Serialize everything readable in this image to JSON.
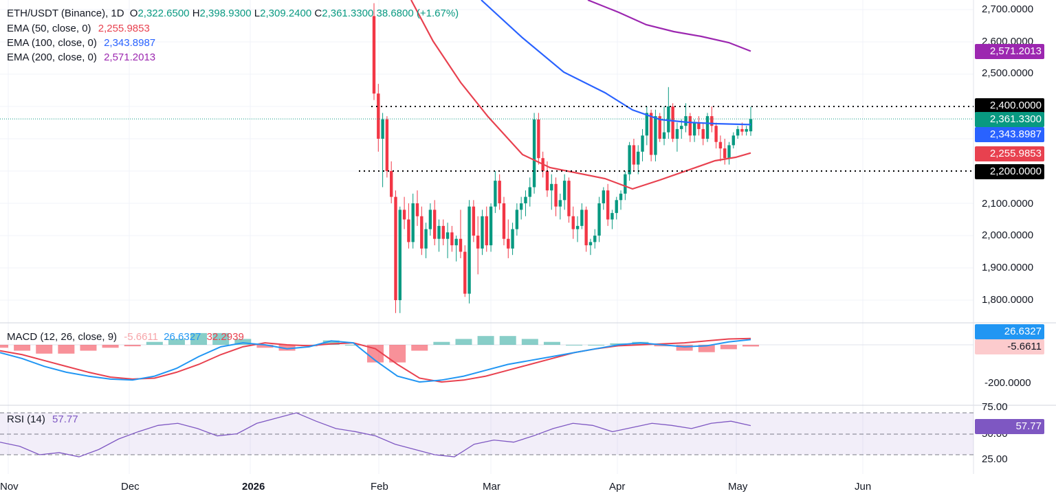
{
  "header": {
    "symbol": "ETH/USDT (Binance), 1D",
    "o_label": "O",
    "o_value": "2,322.6500",
    "h_label": "H",
    "h_value": "2,398.9300",
    "l_label": "L",
    "l_value": "2,309.2400",
    "c_label": "C",
    "c_value": "2,361.3300",
    "change": "38.6800 (+1.67%)"
  },
  "ema_legend": [
    {
      "label": "EMA (50, close, 0)",
      "value": "2,255.9853",
      "color": "#e8414f"
    },
    {
      "label": "EMA (100, close, 0)",
      "value": "2,343.8987",
      "color": "#2962ff"
    },
    {
      "label": "EMA (200, close, 0)",
      "value": "2,571.2013",
      "color": "#9c27b0"
    }
  ],
  "macd_legend": {
    "label": "MACD (12, 26, close, 9)",
    "hist": "-5.6611",
    "macd": "26.6327",
    "signal": "32.2939"
  },
  "rsi_legend": {
    "label": "RSI (14)",
    "value": "57.77"
  },
  "price_axis": [
    "2,700.0000",
    "2,600.0000",
    "2,500.0000",
    "2,100.0000",
    "2,000.0000",
    "1,900.0000",
    "1,800.0000"
  ],
  "price_tags": [
    {
      "text": "2,571.2013",
      "color": "#9c27b0"
    },
    {
      "text": "2,400.0000",
      "color": "#000000"
    },
    {
      "text": "2,361.3300",
      "color": "#089981"
    },
    {
      "text": "2,343.8987",
      "color": "#2962ff"
    },
    {
      "text": "2,255.9853",
      "color": "#e8414f"
    },
    {
      "text": "2,200.0000",
      "color": "#000000"
    }
  ],
  "macd_axis": [
    "-200.0000"
  ],
  "macd_tags": [
    {
      "text": "26.6327",
      "color": "#2196f3"
    },
    {
      "text": "-5.6611",
      "color": "#fccbcd"
    }
  ],
  "rsi_axis": [
    "75.00",
    "50.00",
    "25.00"
  ],
  "rsi_tag": {
    "text": "57.77",
    "color": "#7e57c2"
  },
  "time_axis": [
    "Nov",
    "Dec",
    "2026",
    "Feb",
    "Mar",
    "Apr",
    "May",
    "Jun"
  ],
  "chart_data": [
    {
      "type": "candlestick",
      "title": "ETH/USDT (Binance), 1D",
      "x": [
        "2026-01-31",
        "2026-02-01",
        "2026-02-02",
        "2026-02-03",
        "2026-02-04",
        "2026-02-05",
        "2026-02-06",
        "2026-02-07",
        "2026-02-08",
        "2026-02-09",
        "2026-02-10",
        "2026-02-11",
        "2026-02-12",
        "2026-02-13",
        "2026-02-14",
        "2026-02-15",
        "2026-02-16",
        "2026-02-17",
        "2026-02-18",
        "2026-02-19",
        "2026-02-20",
        "2026-02-21",
        "2026-02-22",
        "2026-02-23",
        "2026-02-24",
        "2026-02-25",
        "2026-02-26",
        "2026-02-27",
        "2026-02-28",
        "2026-03-01",
        "2026-03-02",
        "2026-03-03",
        "2026-03-04",
        "2026-03-05",
        "2026-03-06",
        "2026-03-07",
        "2026-03-08",
        "2026-03-09",
        "2026-03-10",
        "2026-03-11",
        "2026-03-12",
        "2026-03-13",
        "2026-03-14",
        "2026-03-15",
        "2026-03-16",
        "2026-03-17",
        "2026-03-18",
        "2026-03-19",
        "2026-03-20",
        "2026-03-21",
        "2026-03-22",
        "2026-03-23",
        "2026-03-24",
        "2026-03-25",
        "2026-03-26",
        "2026-03-27",
        "2026-03-28",
        "2026-03-29",
        "2026-03-30",
        "2026-03-31",
        "2026-04-01",
        "2026-04-02",
        "2026-04-03",
        "2026-04-04",
        "2026-04-05",
        "2026-04-06",
        "2026-04-07",
        "2026-04-08",
        "2026-04-09",
        "2026-04-10",
        "2026-04-11",
        "2026-04-12",
        "2026-04-13",
        "2026-04-14",
        "2026-04-15",
        "2026-04-16",
        "2026-04-17",
        "2026-04-18",
        "2026-04-19",
        "2026-04-20",
        "2026-04-21",
        "2026-04-22",
        "2026-04-23",
        "2026-04-24",
        "2026-04-25",
        "2026-04-26",
        "2026-04-27",
        "2026-04-28",
        "2026-04-29",
        "2026-04-30",
        "2026-05-01",
        "2026-05-02",
        "2026-05-03",
        "2026-05-04"
      ],
      "ohlc": [
        [
          2680,
          2720,
          2420,
          2440
        ],
        [
          2440,
          2470,
          2260,
          2300
        ],
        [
          2300,
          2380,
          2150,
          2360
        ],
        [
          2360,
          2370,
          2180,
          2200
        ],
        [
          2200,
          2230,
          2100,
          2120
        ],
        [
          2120,
          2140,
          1760,
          1800
        ],
        [
          1800,
          2090,
          1760,
          2080
        ],
        [
          2080,
          2120,
          2020,
          2050
        ],
        [
          2050,
          2100,
          1960,
          1980
        ],
        [
          1980,
          2130,
          1960,
          2100
        ],
        [
          2100,
          2140,
          2030,
          2060
        ],
        [
          2060,
          2090,
          1940,
          1960
        ],
        [
          1960,
          2040,
          1930,
          2020
        ],
        [
          2020,
          2100,
          2000,
          2080
        ],
        [
          2080,
          2110,
          1970,
          1990
        ],
        [
          1990,
          2050,
          1950,
          2030
        ],
        [
          2030,
          2050,
          1970,
          1990
        ],
        [
          1990,
          2040,
          1930,
          2010
        ],
        [
          2010,
          2030,
          1950,
          1970
        ],
        [
          1970,
          2000,
          1920,
          1990
        ],
        [
          1990,
          2080,
          1930,
          1950
        ],
        [
          1950,
          1970,
          1810,
          1820
        ],
        [
          1820,
          2110,
          1790,
          2090
        ],
        [
          2090,
          2110,
          1980,
          2000
        ],
        [
          2000,
          2060,
          1880,
          1960
        ],
        [
          1960,
          2080,
          1940,
          2060
        ],
        [
          2060,
          2090,
          1950,
          1970
        ],
        [
          1970,
          2100,
          1950,
          2090
        ],
        [
          2090,
          2200,
          2070,
          2170
        ],
        [
          2170,
          2190,
          2080,
          2100
        ],
        [
          2100,
          2120,
          1970,
          1990
        ],
        [
          1990,
          2050,
          1930,
          1960
        ],
        [
          1960,
          2040,
          1940,
          2020
        ],
        [
          2020,
          2100,
          2000,
          2080
        ],
        [
          2080,
          2120,
          2050,
          2100
        ],
        [
          2100,
          2140,
          2060,
          2120
        ],
        [
          2120,
          2180,
          2090,
          2150
        ],
        [
          2150,
          2380,
          2130,
          2360
        ],
        [
          2360,
          2380,
          2220,
          2240
        ],
        [
          2240,
          2260,
          2180,
          2200
        ],
        [
          2200,
          2230,
          2120,
          2140
        ],
        [
          2140,
          2190,
          2080,
          2160
        ],
        [
          2160,
          2180,
          2060,
          2090
        ],
        [
          2090,
          2130,
          2050,
          2110
        ],
        [
          2110,
          2190,
          2080,
          2170
        ],
        [
          2170,
          2180,
          2040,
          2060
        ],
        [
          2060,
          2090,
          1990,
          2020
        ],
        [
          2020,
          2060,
          1980,
          2030
        ],
        [
          2030,
          2100,
          2020,
          2080
        ],
        [
          2080,
          2090,
          1950,
          1970
        ],
        [
          1970,
          1990,
          1940,
          1980
        ],
        [
          1980,
          2020,
          1960,
          2000
        ],
        [
          2000,
          2120,
          1980,
          2100
        ],
        [
          2100,
          2150,
          2080,
          2140
        ],
        [
          2140,
          2160,
          2030,
          2050
        ],
        [
          2050,
          2080,
          2020,
          2070
        ],
        [
          2070,
          2120,
          2050,
          2110
        ],
        [
          2110,
          2140,
          2080,
          2130
        ],
        [
          2130,
          2200,
          2110,
          2190
        ],
        [
          2190,
          2290,
          2170,
          2280
        ],
        [
          2280,
          2300,
          2200,
          2220
        ],
        [
          2220,
          2280,
          2190,
          2260
        ],
        [
          2260,
          2330,
          2230,
          2310
        ],
        [
          2310,
          2400,
          2280,
          2380
        ],
        [
          2380,
          2390,
          2230,
          2250
        ],
        [
          2250,
          2390,
          2230,
          2370
        ],
        [
          2370,
          2380,
          2290,
          2300
        ],
        [
          2300,
          2400,
          2280,
          2320
        ],
        [
          2320,
          2460,
          2300,
          2400
        ],
        [
          2400,
          2410,
          2290,
          2300
        ],
        [
          2300,
          2350,
          2260,
          2330
        ],
        [
          2330,
          2360,
          2300,
          2340
        ],
        [
          2340,
          2410,
          2320,
          2370
        ],
        [
          2370,
          2380,
          2290,
          2310
        ],
        [
          2310,
          2360,
          2290,
          2350
        ],
        [
          2350,
          2370,
          2310,
          2330
        ],
        [
          2330,
          2350,
          2280,
          2300
        ],
        [
          2300,
          2380,
          2290,
          2370
        ],
        [
          2370,
          2400,
          2320,
          2340
        ],
        [
          2340,
          2350,
          2270,
          2290
        ],
        [
          2290,
          2310,
          2230,
          2270
        ],
        [
          2270,
          2300,
          2220,
          2240
        ],
        [
          2240,
          2290,
          2220,
          2280
        ],
        [
          2280,
          2320,
          2270,
          2310
        ],
        [
          2310,
          2340,
          2300,
          2330
        ],
        [
          2330,
          2350,
          2310,
          2322
        ],
        [
          2322,
          2340,
          2310,
          2330
        ],
        [
          2323,
          2399,
          2309,
          2361
        ]
      ],
      "ema": [
        {
          "name": "EMA (50, close, 0)",
          "last": 2255.9853
        },
        {
          "name": "EMA (100, close, 0)",
          "last": 2343.8987
        },
        {
          "name": "EMA (200, close, 0)",
          "last": 2571.2013
        }
      ],
      "horizontal_lines": [
        2400,
        2200
      ],
      "last_close": 2361.33,
      "ylim": [
        1740,
        2760
      ]
    },
    {
      "type": "line",
      "title": "MACD (12, 26, close, 9)",
      "series": [
        {
          "name": "MACD",
          "values": [
            -40,
            -70,
            -110,
            -140,
            -160,
            -175,
            -180,
            -160,
            -120,
            -60,
            -10,
            10,
            0,
            -20,
            -10,
            20,
            10,
            -80,
            -160,
            -190,
            -180,
            -160,
            -130,
            -100,
            -80,
            -60,
            -40,
            -20,
            0,
            10,
            0,
            -10,
            -5,
            15,
            26.6
          ]
        },
        {
          "name": "Signal",
          "values": [
            -30,
            -50,
            -80,
            -110,
            -140,
            -165,
            -175,
            -170,
            -140,
            -100,
            -50,
            -10,
            10,
            0,
            -5,
            5,
            10,
            -20,
            -100,
            -170,
            -190,
            -180,
            -160,
            -130,
            -100,
            -70,
            -40,
            -20,
            -5,
            0,
            5,
            10,
            20,
            30,
            32.3
          ]
        }
      ],
      "histogram_last": -5.6611,
      "ylim": [
        -280,
        60
      ]
    },
    {
      "type": "line",
      "title": "RSI (14)",
      "values": [
        42,
        38,
        30,
        32,
        28,
        35,
        45,
        52,
        58,
        60,
        55,
        48,
        50,
        60,
        65,
        70,
        62,
        55,
        52,
        48,
        40,
        35,
        30,
        28,
        40,
        44,
        42,
        48,
        55,
        60,
        58,
        52,
        56,
        60,
        58,
        55,
        60,
        62,
        57.77
      ],
      "bands": [
        70,
        50,
        30
      ],
      "ylim": [
        20,
        80
      ]
    }
  ]
}
